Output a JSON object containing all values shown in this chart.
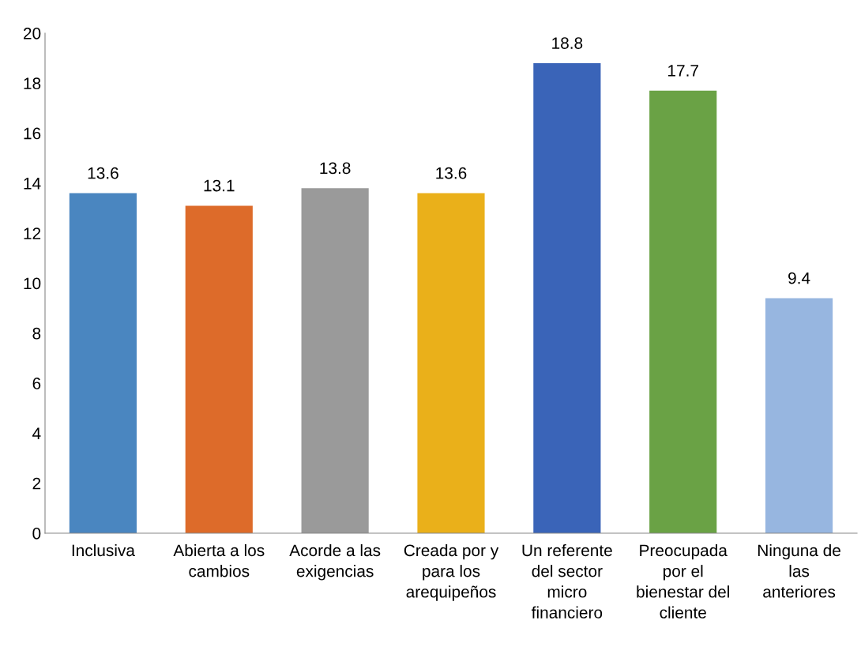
{
  "chart_data": {
    "type": "bar",
    "categories": [
      "Inclusiva",
      "Abierta a los\ncambios",
      "Acorde a las\nexigencias",
      "Creada por y\npara los\narequipeños",
      "Un referente\ndel sector\nmicro\nfinanciero",
      "Preocupada\npor el\nbienestar del\ncliente",
      "Ninguna de\nlas\nanteriores"
    ],
    "values": [
      13.6,
      13.1,
      13.8,
      13.6,
      18.8,
      17.7,
      9.4
    ],
    "colors": [
      "#4a86c0",
      "#dd6b2a",
      "#9a9a9a",
      "#eab01a",
      "#3a64b8",
      "#6aa245",
      "#97b6e0"
    ],
    "ylim": [
      0,
      20
    ],
    "yticks": [
      0,
      2,
      4,
      6,
      8,
      10,
      12,
      14,
      16,
      18,
      20
    ],
    "data_labels": true,
    "grid": false,
    "legend": false
  }
}
